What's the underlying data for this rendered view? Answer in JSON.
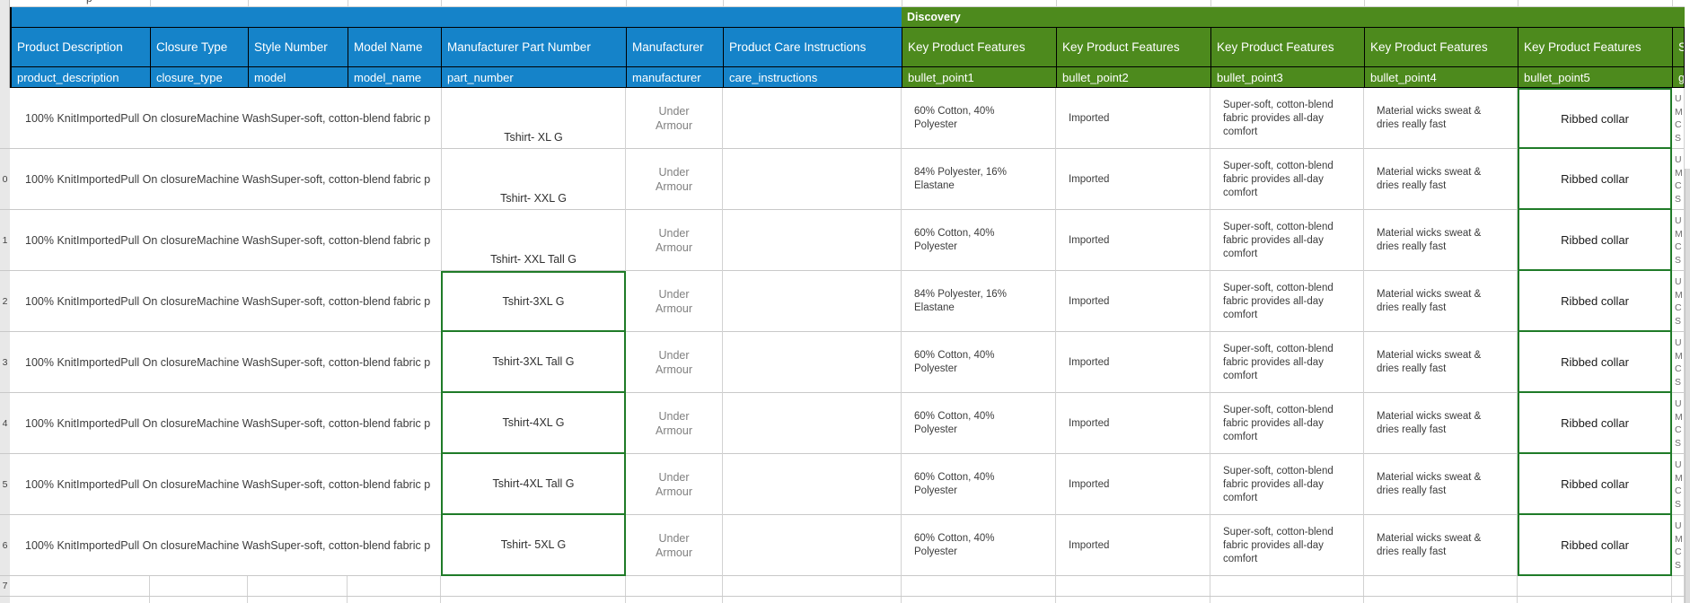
{
  "sheet": {
    "discovery_label": "Discovery",
    "top_partial_text": "p",
    "empty_row_number": "7",
    "colors": {
      "header_blue": "#1583C9",
      "header_green": "#4D8A1D",
      "highlight_border_green": "#1F7B28",
      "gridline": "#D2D2D2",
      "gutter_bg": "#E8E8E8",
      "text_dark": "#3C3C3C",
      "text_gray": "#808080",
      "header_text": "#FFFFFF"
    },
    "columns": [
      {
        "header": "Product Description",
        "sub": "product_description",
        "group": "blue"
      },
      {
        "header": "Closure Type",
        "sub": "closure_type",
        "group": "blue"
      },
      {
        "header": "Style Number",
        "sub": "model",
        "group": "blue"
      },
      {
        "header": "Model Name",
        "sub": "model_name",
        "group": "blue"
      },
      {
        "header": "Manufacturer Part Number",
        "sub": "part_number",
        "group": "blue"
      },
      {
        "header": "Manufacturer",
        "sub": "manufacturer",
        "group": "blue"
      },
      {
        "header": "Product Care Instructions",
        "sub": "care_instructions",
        "group": "blue"
      },
      {
        "header": "Key Product Features",
        "sub": "bullet_point1",
        "group": "green"
      },
      {
        "header": "Key Product Features",
        "sub": "bullet_point2",
        "group": "green"
      },
      {
        "header": "Key Product Features",
        "sub": "bullet_point3",
        "group": "green"
      },
      {
        "header": "Key Product Features",
        "sub": "bullet_point4",
        "group": "green"
      },
      {
        "header": "Key Product Features",
        "sub": "bullet_point5",
        "group": "green"
      },
      {
        "header": "S",
        "sub": "g",
        "group": "green"
      }
    ],
    "rows": [
      {
        "row_number": "",
        "product_description": "100% KnitImportedPull On closureMachine WashSuper-soft, cotton-blend fabric p",
        "part_number": "Tshirt- XL G",
        "manufacturer": "Under Armour",
        "care_instructions": "",
        "bullet_point1": "60% Cotton, 40% Polyester",
        "bullet_point2": "Imported",
        "bullet_point3": "Super-soft, cotton-blend fabric provides all-day comfort",
        "bullet_point4": "Material wicks sweat & dries really fast",
        "bullet_point5": "Ribbed collar",
        "size_lines": [
          "U",
          "M",
          "C",
          "S"
        ]
      },
      {
        "row_number": "0",
        "product_description": "100% KnitImportedPull On closureMachine WashSuper-soft, cotton-blend fabric p",
        "part_number": "Tshirt- XXL G",
        "manufacturer": "Under Armour",
        "care_instructions": "",
        "bullet_point1": "84% Polyester, 16% Elastane",
        "bullet_point2": "Imported",
        "bullet_point3": "Super-soft, cotton-blend fabric provides all-day comfort",
        "bullet_point4": "Material wicks sweat & dries really fast",
        "bullet_point5": "Ribbed collar",
        "size_lines": [
          "U",
          "M",
          "C",
          "S"
        ]
      },
      {
        "row_number": "1",
        "product_description": "100% KnitImportedPull On closureMachine WashSuper-soft, cotton-blend fabric p",
        "part_number": "Tshirt- XXL Tall G",
        "manufacturer": "Under Armour",
        "care_instructions": "",
        "bullet_point1": "60% Cotton, 40% Polyester",
        "bullet_point2": "Imported",
        "bullet_point3": "Super-soft, cotton-blend fabric provides all-day comfort",
        "bullet_point4": "Material wicks sweat & dries really fast",
        "bullet_point5": "Ribbed collar",
        "size_lines": [
          "U",
          "M",
          "C",
          "S"
        ]
      },
      {
        "row_number": "2",
        "product_description": "100% KnitImportedPull On closureMachine WashSuper-soft, cotton-blend fabric p",
        "part_number": "Tshirt-3XL G",
        "manufacturer": "Under Armour",
        "care_instructions": "",
        "bullet_point1": "84% Polyester, 16% Elastane",
        "bullet_point2": "Imported",
        "bullet_point3": "Super-soft, cotton-blend fabric provides all-day comfort",
        "bullet_point4": "Material wicks sweat & dries really fast",
        "bullet_point5": "Ribbed collar",
        "size_lines": [
          "U",
          "M",
          "C",
          "S"
        ]
      },
      {
        "row_number": "3",
        "product_description": "100% KnitImportedPull On closureMachine WashSuper-soft, cotton-blend fabric p",
        "part_number": "Tshirt-3XL Tall G",
        "manufacturer": "Under Armour",
        "care_instructions": "",
        "bullet_point1": "60% Cotton, 40% Polyester",
        "bullet_point2": "Imported",
        "bullet_point3": "Super-soft, cotton-blend fabric provides all-day comfort",
        "bullet_point4": "Material wicks sweat & dries really fast",
        "bullet_point5": "Ribbed collar",
        "size_lines": [
          "U",
          "M",
          "C",
          "S"
        ]
      },
      {
        "row_number": "4",
        "product_description": "100% KnitImportedPull On closureMachine WashSuper-soft, cotton-blend fabric p",
        "part_number": "Tshirt-4XL G",
        "manufacturer": "Under Armour",
        "care_instructions": "",
        "bullet_point1": "60% Cotton, 40% Polyester",
        "bullet_point2": "Imported",
        "bullet_point3": "Super-soft, cotton-blend fabric provides all-day comfort",
        "bullet_point4": "Material wicks sweat & dries really fast",
        "bullet_point5": "Ribbed collar",
        "size_lines": [
          "U",
          "M",
          "C",
          "S"
        ]
      },
      {
        "row_number": "5",
        "product_description": "100% KnitImportedPull On closureMachine WashSuper-soft, cotton-blend fabric p",
        "part_number": "Tshirt-4XL Tall G",
        "manufacturer": "Under Armour",
        "care_instructions": "",
        "bullet_point1": "60% Cotton, 40% Polyester",
        "bullet_point2": "Imported",
        "bullet_point3": "Super-soft, cotton-blend fabric provides all-day comfort",
        "bullet_point4": "Material wicks sweat & dries really fast",
        "bullet_point5": "Ribbed collar",
        "size_lines": [
          "U",
          "M",
          "C",
          "S"
        ]
      },
      {
        "row_number": "6",
        "product_description": "100% KnitImportedPull On closureMachine WashSuper-soft, cotton-blend fabric p",
        "part_number": "Tshirt- 5XL G",
        "manufacturer": "Under Armour",
        "care_instructions": "",
        "bullet_point1": "60% Cotton, 40% Polyester",
        "bullet_point2": "Imported",
        "bullet_point3": "Super-soft, cotton-blend fabric provides all-day comfort",
        "bullet_point4": "Material wicks sweat & dries really fast",
        "bullet_point5": "Ribbed collar",
        "size_lines": [
          "U",
          "M",
          "C",
          "S"
        ]
      }
    ]
  }
}
